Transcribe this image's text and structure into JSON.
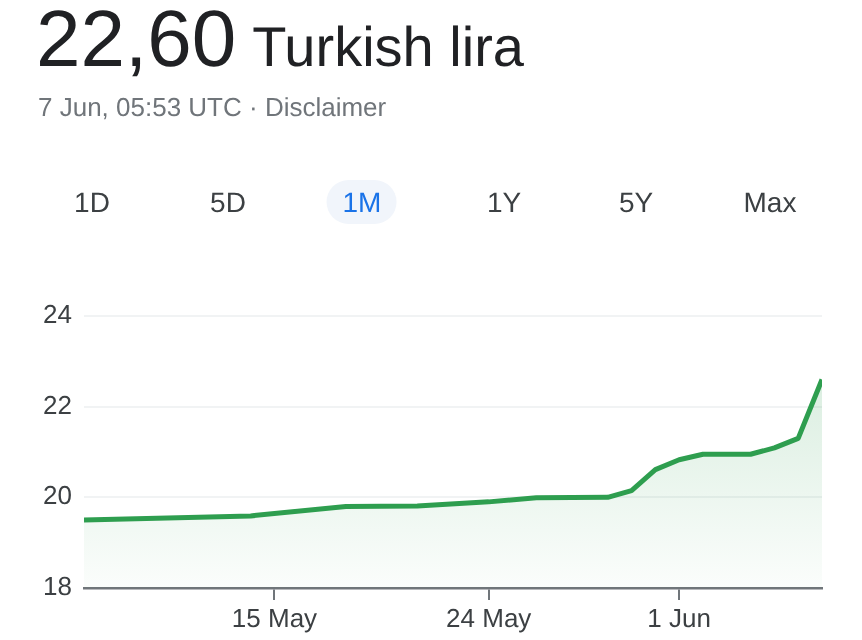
{
  "chart_data": {
    "type": "area",
    "title": "22,60",
    "subtitle": "Turkish lira",
    "annotations": [
      "7 Jun, 05:53 UTC · Disclaimer",
      "1D",
      "5D",
      "1M",
      "1Y",
      "5Y",
      "Max"
    ],
    "x": [
      "--05-07",
      "--05-14",
      "--05-18",
      "--05-21",
      "--05-24",
      "--05-26",
      "--05-29",
      "--05-30",
      "--05-31",
      "--06-01",
      "--06-02",
      "--06-04",
      "--06-05",
      "--06-06",
      "--06-07"
    ],
    "series": [
      {
        "color": "#2e9e4f",
        "values": [
          19.5,
          19.59,
          19.8,
          19.81,
          19.9,
          19.99,
          20.0,
          20.15,
          20.61,
          20.83,
          20.95,
          20.95,
          21.09,
          21.3,
          22.6
        ]
      }
    ],
    "xlim": [
      "--05-07",
      "--06-07"
    ],
    "xticks": [
      {
        "value": "--05-15",
        "label": "15 May"
      },
      {
        "value": "--05-24",
        "label": "24 May"
      },
      {
        "value": "--06-01",
        "label": "1 Jun"
      }
    ],
    "ylim": [
      18,
      24
    ],
    "yticks": [
      18,
      20,
      22,
      24
    ],
    "grid": "y",
    "legend": false
  }
}
